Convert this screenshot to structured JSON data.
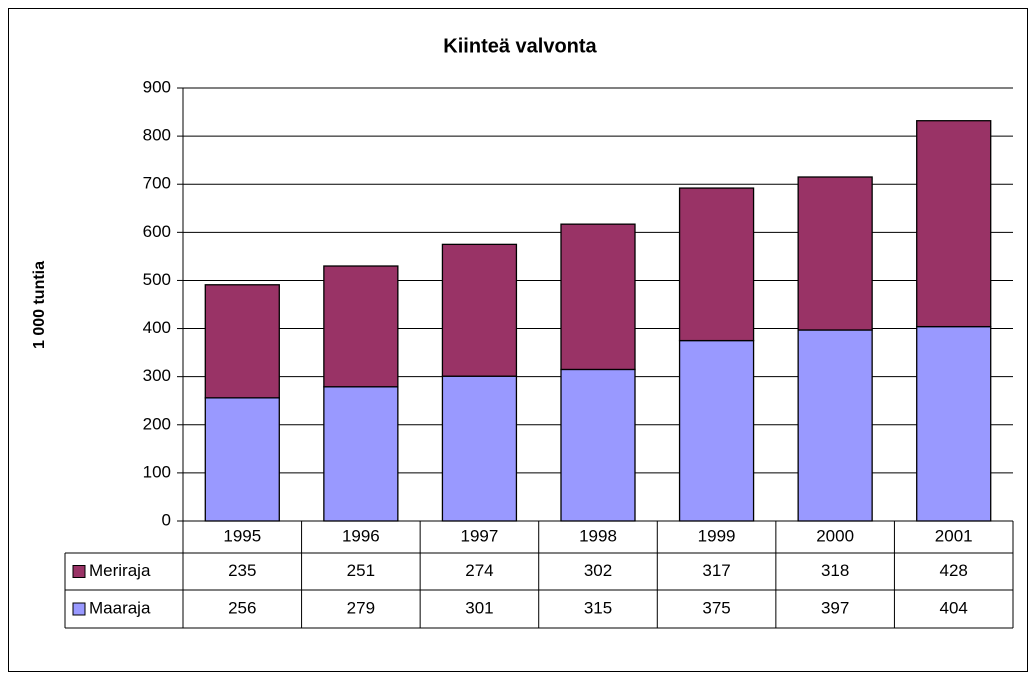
{
  "chart_data": {
    "type": "stacked_bar",
    "title": "Kiinteä valvonta",
    "y_label": "1 000 tuntia",
    "categories": [
      "1995",
      "1996",
      "1997",
      "1998",
      "1999",
      "2000",
      "2001"
    ],
    "series": [
      {
        "name": "Meriraja",
        "color": "#993366",
        "values": [
          235,
          251,
          274,
          302,
          317,
          318,
          428
        ]
      },
      {
        "name": "Maaraja",
        "color": "#9999ff",
        "values": [
          256,
          279,
          301,
          315,
          375,
          397,
          404
        ]
      }
    ],
    "ylim": [
      0,
      900
    ],
    "yticks": [
      0,
      100,
      200,
      300,
      400,
      500,
      600,
      700,
      800,
      900
    ],
    "grid": true
  }
}
